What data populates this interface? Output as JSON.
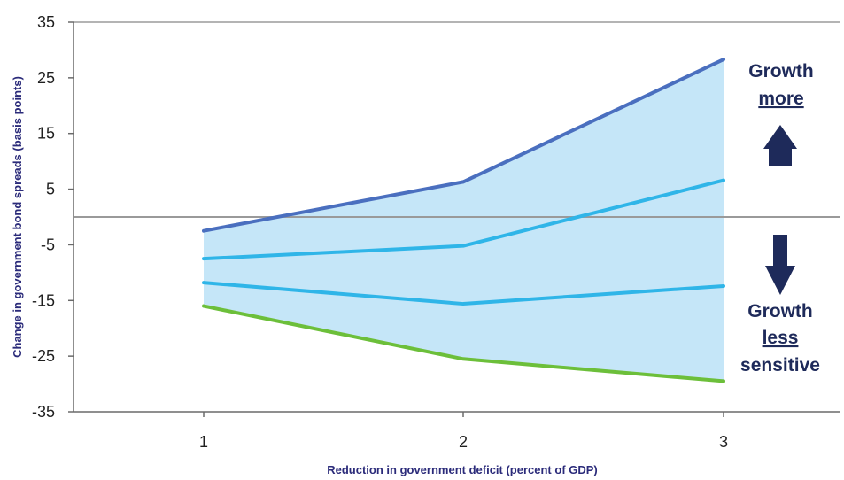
{
  "chart_data": {
    "type": "line",
    "xlabel": "Reduction in government deficit (percent of GDP)",
    "ylabel": "Change in government bond spreads (basis points)",
    "x": [
      1,
      2,
      3
    ],
    "x_tick_labels": [
      "1",
      "2",
      "3"
    ],
    "ylim": [
      -35,
      35
    ],
    "y_ticks": [
      35,
      25,
      15,
      5,
      -5,
      -15,
      -25,
      -35
    ],
    "y_tick_labels": [
      "35",
      "25",
      "15",
      "5",
      "-5",
      "-15",
      "-25",
      "-35"
    ],
    "reference_line_y": 0,
    "grid": false,
    "series": [
      {
        "values": [
          -2.5,
          6.3,
          28.3
        ],
        "color": "#4a6fbf"
      },
      {
        "values": [
          -7.5,
          -5.2,
          6.6
        ],
        "color": "#2fb5e8"
      },
      {
        "values": [
          -11.8,
          -15.6,
          -12.4
        ],
        "color": "#2fb5e8"
      },
      {
        "values": [
          -16.0,
          -25.5,
          -29.5
        ],
        "color": "#6cbf3a"
      }
    ],
    "band": {
      "upper_series": 0,
      "lower_series": 3,
      "color": "#c5e6f8"
    },
    "annotations": {
      "top_line1": "Growth",
      "top_line2": "more",
      "bottom_line1": "Growth",
      "bottom_line2": "less",
      "bottom_line3": "sensitive"
    },
    "colors": {
      "arrow": "#1e2a5a",
      "reference_line": "#9a9a9a",
      "axis": "#6a6a6a"
    }
  }
}
